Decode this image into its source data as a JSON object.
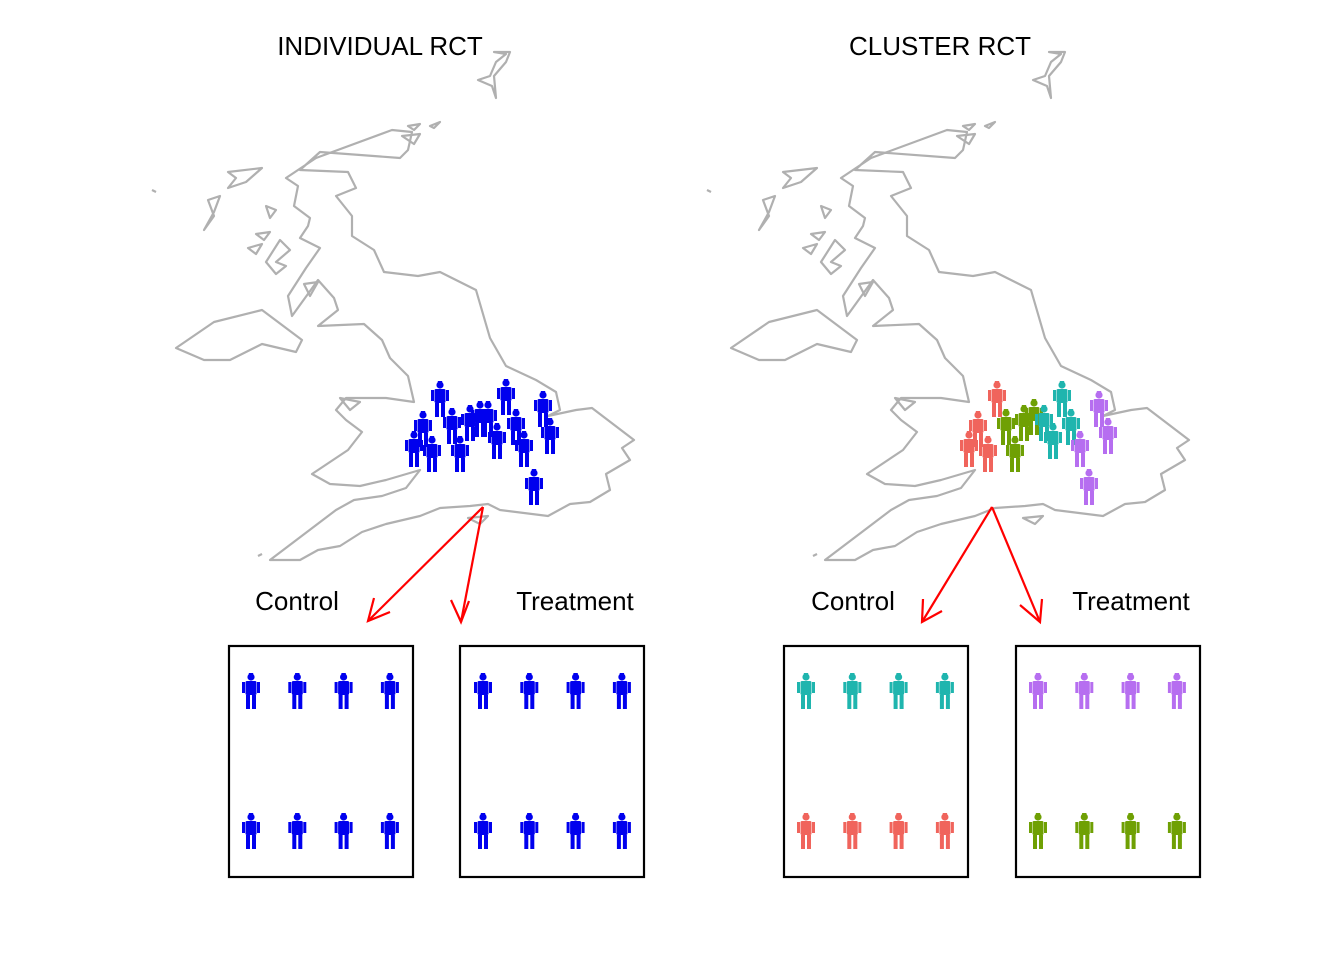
{
  "colors": {
    "map": "#b0b0b0",
    "arrow": "#ff0000",
    "box": "#000000",
    "individual": "#0000ee",
    "cluster_red": "#f0645c",
    "cluster_green": "#6fa004",
    "cluster_teal": "#1fb5ae",
    "cluster_purple": "#b66ef0"
  },
  "panels": [
    {
      "title": "INDIVIDUAL RCT",
      "control_label": "Control",
      "treatment_label": "Treatment",
      "control_colors": [
        "individual",
        "individual"
      ],
      "treatment_colors": [
        "individual",
        "individual"
      ]
    },
    {
      "title": "CLUSTER RCT",
      "control_label": "Control",
      "treatment_label": "Treatment",
      "control_colors": [
        "cluster_teal",
        "cluster_red"
      ],
      "treatment_colors": [
        "cluster_purple",
        "cluster_green"
      ]
    }
  ],
  "icon": "person-icon"
}
